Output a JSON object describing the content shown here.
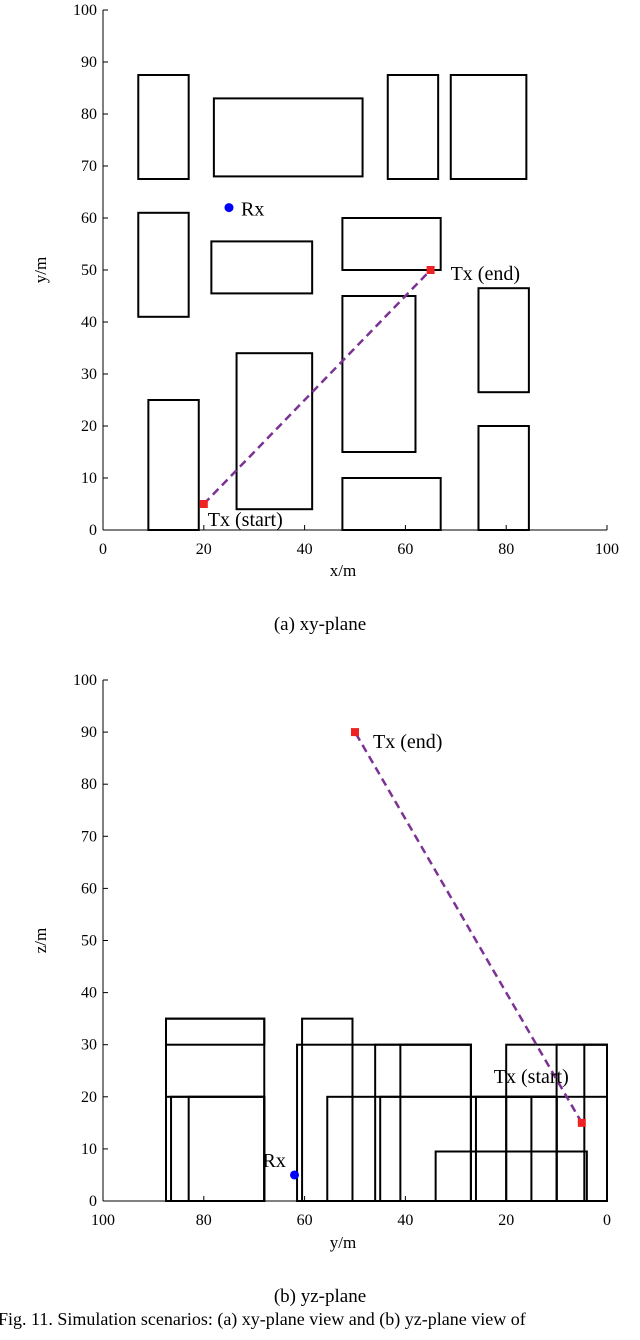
{
  "chart_data": [
    {
      "type": "scatter",
      "panel": "xy",
      "caption": "(a) xy-plane",
      "xlabel": "x/m",
      "ylabel": "y/m",
      "xlim": [
        0,
        100
      ],
      "ylim": [
        0,
        100
      ],
      "xticks": [
        0,
        20,
        40,
        60,
        80,
        100
      ],
      "yticks": [
        0,
        10,
        20,
        30,
        40,
        50,
        60,
        70,
        80,
        90,
        100
      ],
      "buildings": [
        [
          7,
          67.5,
          17,
          87.5
        ],
        [
          22,
          68,
          51.5,
          83
        ],
        [
          56.5,
          67.5,
          66.5,
          87.5
        ],
        [
          69,
          67.5,
          84,
          87.5
        ],
        [
          7,
          41,
          17,
          61
        ],
        [
          21.5,
          45.5,
          41.5,
          55.5
        ],
        [
          47.5,
          50,
          67,
          60
        ],
        [
          9,
          0,
          19,
          25
        ],
        [
          26.5,
          4,
          41.5,
          34
        ],
        [
          47.5,
          15,
          62,
          45
        ],
        [
          74.5,
          26.5,
          84.5,
          46.5
        ],
        [
          47.5,
          0,
          67,
          10
        ],
        [
          74.5,
          0,
          84.5,
          20
        ]
      ],
      "points": [
        {
          "label": "Rx",
          "x": 25,
          "y": 62,
          "color": "#0000ff",
          "marker": "circle"
        },
        {
          "label": "Tx (start)",
          "x": 20,
          "y": 5,
          "color": "#ee2222",
          "marker": "square"
        },
        {
          "label": "Tx (end)",
          "x": 65,
          "y": 50,
          "color": "#ee2222",
          "marker": "square"
        }
      ],
      "trajectory": {
        "x": [
          20,
          65
        ],
        "y": [
          5,
          50
        ],
        "color": "#7b3294",
        "style": "dashed"
      }
    },
    {
      "type": "scatter",
      "panel": "yz",
      "caption": "(b) yz-plane",
      "xlabel": "y/m",
      "ylabel": "z/m",
      "xlim": [
        100,
        0
      ],
      "ylim": [
        0,
        100
      ],
      "xticks": [
        100,
        80,
        60,
        40,
        20,
        0
      ],
      "yticks": [
        0,
        10,
        20,
        30,
        40,
        50,
        60,
        70,
        80,
        90,
        100
      ],
      "buildings": [
        [
          68,
          0,
          87.5,
          35
        ],
        [
          68,
          30,
          87.5,
          35
        ],
        [
          68,
          0,
          87.5,
          20
        ],
        [
          68,
          0,
          83,
          20
        ],
        [
          68,
          0,
          86.5,
          20
        ],
        [
          50.5,
          0,
          60.5,
          35
        ],
        [
          27,
          0,
          61.5,
          30
        ],
        [
          27,
          0,
          46,
          30
        ],
        [
          27,
          0,
          41,
          30
        ],
        [
          10,
          0,
          55.5,
          20
        ],
        [
          10,
          0,
          45,
          20
        ],
        [
          10,
          0,
          26,
          20
        ],
        [
          10,
          0,
          20,
          20
        ],
        [
          10,
          0,
          15,
          20
        ],
        [
          0,
          0,
          20,
          30
        ],
        [
          0,
          0,
          10,
          20
        ],
        [
          0,
          0,
          4.5,
          30
        ],
        [
          0,
          0,
          10,
          30
        ],
        [
          4,
          0,
          34,
          9.5
        ]
      ],
      "points": [
        {
          "label": "Rx",
          "x": 62,
          "y": 5,
          "color": "#0000ff",
          "marker": "circle"
        },
        {
          "label": "Tx (start)",
          "x": 5,
          "y": 15,
          "color": "#ee2222",
          "marker": "square"
        },
        {
          "label": "Tx (end)",
          "x": 50,
          "y": 90,
          "color": "#ee2222",
          "marker": "square"
        }
      ],
      "trajectory": {
        "x": [
          5,
          50
        ],
        "y": [
          15,
          90
        ],
        "color": "#7b3294",
        "style": "dashed"
      }
    }
  ],
  "figure_caption": "Fig. 11.  Simulation scenarios: (a) xy-plane view and (b) yz-plane view of"
}
